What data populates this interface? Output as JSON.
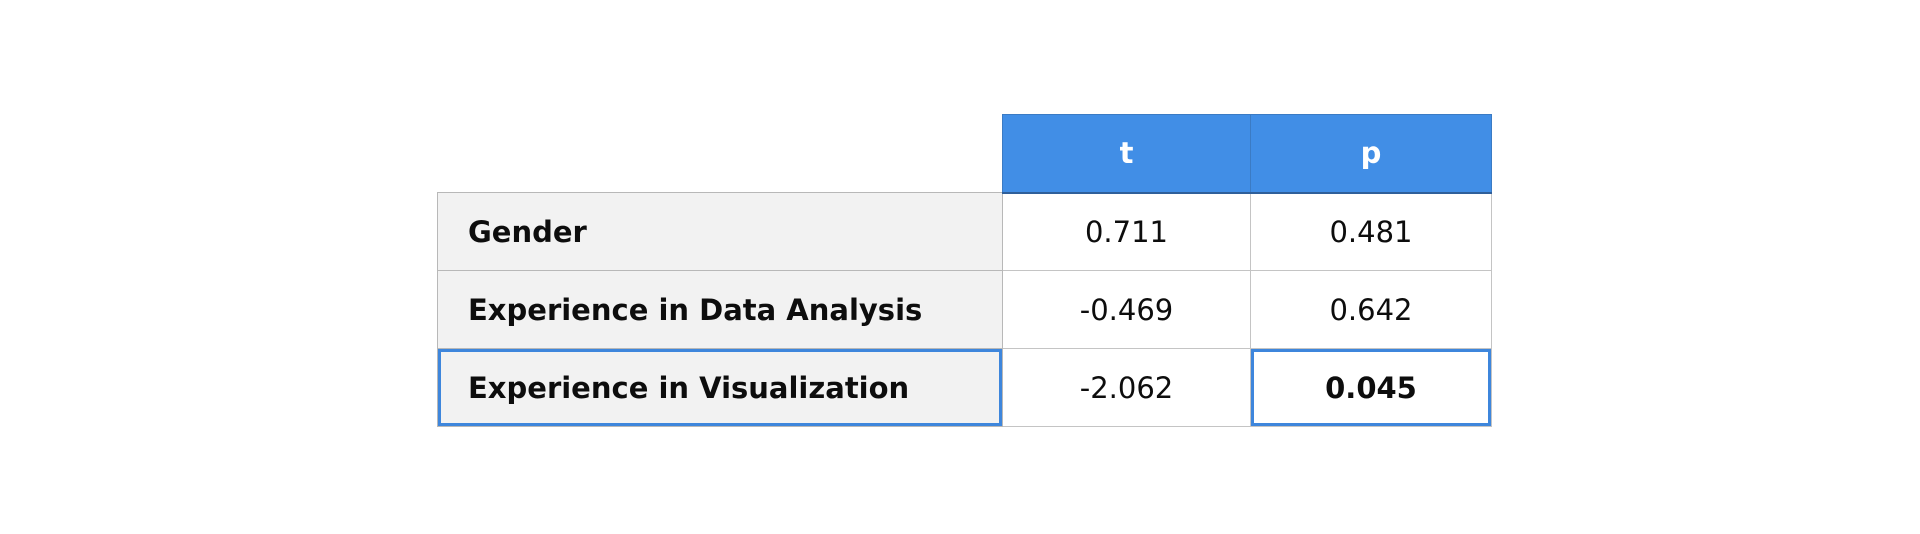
{
  "chart_data": {
    "type": "table",
    "columns": [
      "t",
      "p"
    ],
    "rows": [
      {
        "label": "Gender",
        "t": "0.711",
        "p": "0.481"
      },
      {
        "label": "Experience in Data Analysis",
        "t": "-0.469",
        "p": "0.642"
      },
      {
        "label": "Experience in Visualization",
        "t": "-2.062",
        "p": "0.045"
      }
    ],
    "highlighted_cells": [
      "Experience in Visualization",
      "0.045"
    ]
  },
  "colors": {
    "header_bg": "#418ee6",
    "header_text": "#ffffff",
    "row_label_bg": "#f2f2f2",
    "highlight_border": "#3e86dc"
  }
}
